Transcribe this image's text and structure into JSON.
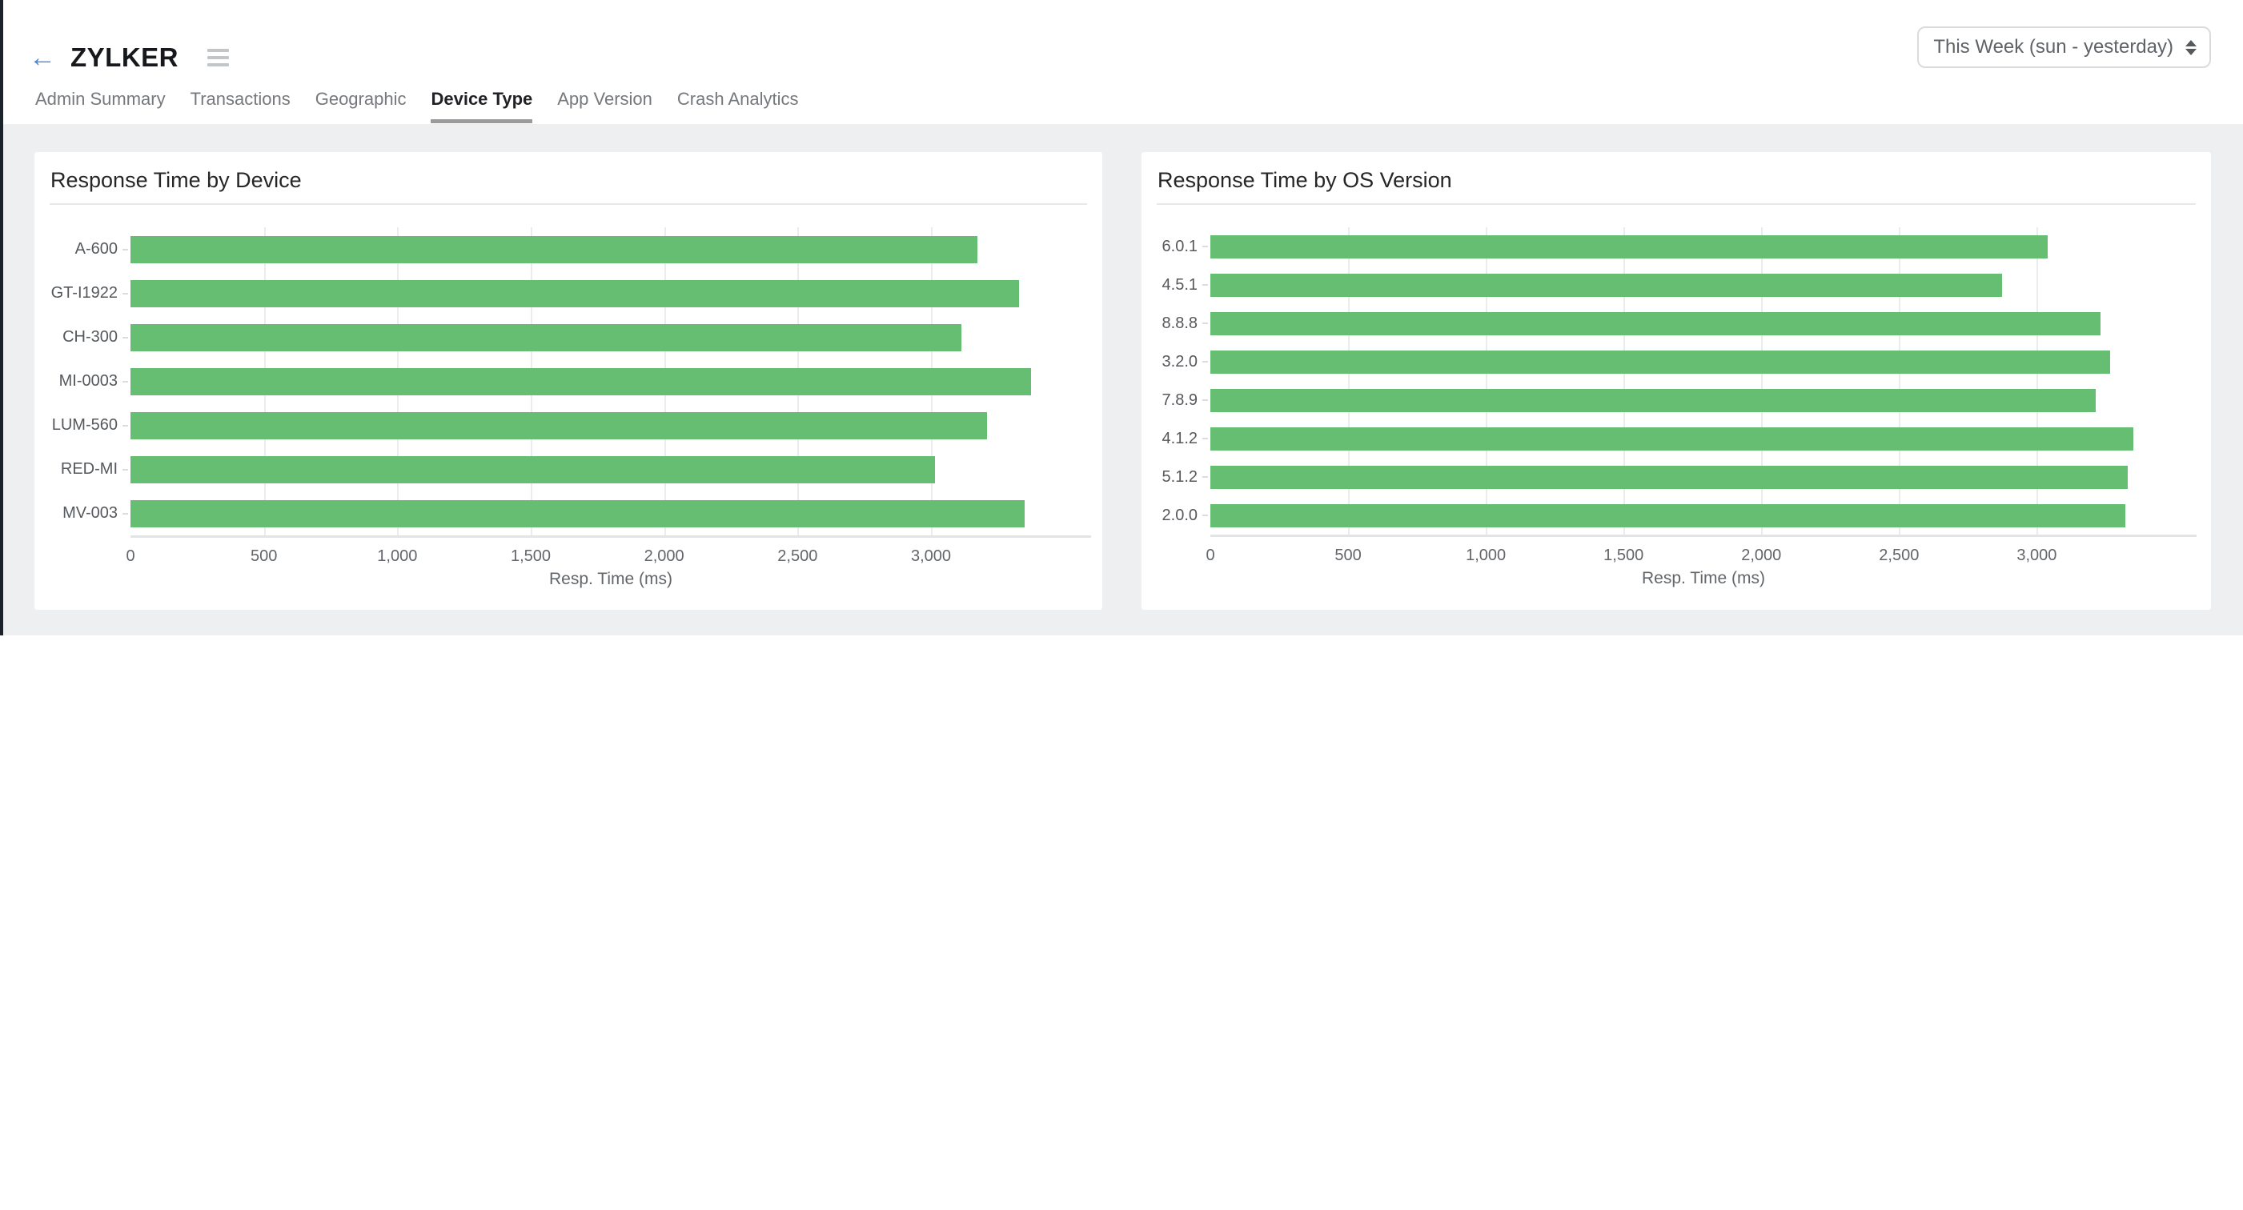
{
  "header": {
    "title": "ZYLKER",
    "back_glyph": "←"
  },
  "period_selector": {
    "value": "This Week (sun - yesterday)"
  },
  "tabs": [
    {
      "label": "Admin Summary",
      "active": false
    },
    {
      "label": "Transactions",
      "active": false
    },
    {
      "label": "Geographic",
      "active": false
    },
    {
      "label": "Device Type",
      "active": true
    },
    {
      "label": "App Version",
      "active": false
    },
    {
      "label": "Crash Analytics",
      "active": false
    }
  ],
  "chart_data": [
    {
      "type": "bar",
      "orientation": "horizontal",
      "title": "Response Time by Device",
      "categories": [
        "A-600",
        "GT-I1922",
        "CH-300",
        "MI-0003",
        "LUM-560",
        "RED-MI",
        "MV-003"
      ],
      "values": [
        3175,
        3330,
        3115,
        3375,
        3210,
        3015,
        3350
      ],
      "xlabel": "Resp. Time (ms)",
      "xticks": [
        0,
        500,
        1000,
        1500,
        2000,
        2500,
        3000
      ],
      "xtick_labels": [
        "0",
        "500",
        "1,000",
        "1,500",
        "2,000",
        "2,500",
        "3,000"
      ],
      "xlim": [
        0,
        3600
      ],
      "grid": true,
      "legend": "none",
      "bar_color": "#66be72"
    },
    {
      "type": "bar",
      "orientation": "horizontal",
      "title": "Response Time by OS Version",
      "categories": [
        "6.0.1",
        "4.5.1",
        "8.8.8",
        "3.2.0",
        "7.8.9",
        "4.1.2",
        "5.1.2",
        "2.0.0"
      ],
      "values": [
        3040,
        2875,
        3230,
        3265,
        3215,
        3350,
        3330,
        3320
      ],
      "xlabel": "Resp. Time (ms)",
      "xticks": [
        0,
        500,
        1000,
        1500,
        2000,
        2500,
        3000
      ],
      "xtick_labels": [
        "0",
        "500",
        "1,000",
        "1,500",
        "2,000",
        "2,500",
        "3,000"
      ],
      "xlim": [
        0,
        3580
      ],
      "grid": true,
      "legend": "none",
      "bar_color": "#66be72"
    }
  ],
  "colors": {
    "bar_green": "#66be72",
    "page_bg": "#edeff0",
    "accent_blue": "#4e86d3",
    "edge_line": "#1c222c",
    "active_tab_underline": "#9b9b9b"
  }
}
